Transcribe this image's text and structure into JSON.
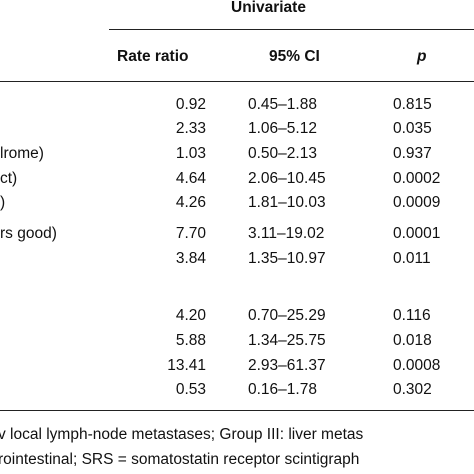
{
  "header": {
    "group_title": "Univariate",
    "rate_ratio": "Rate ratio",
    "ci": "95% CI",
    "p": "p"
  },
  "rows": [
    {
      "label": "",
      "rr": "0.92",
      "ci": "0.45–1.88",
      "p": "0.815"
    },
    {
      "label": "",
      "rr": "2.33",
      "ci": "1.06–5.12",
      "p": "0.035"
    },
    {
      "label": "lrome)",
      "rr": "1.03",
      "ci": "0.50–2.13",
      "p": "0.937"
    },
    {
      "label": "ct)",
      "rr": "4.64",
      "ci": "2.06–10.45",
      "p": "0.0002"
    },
    {
      "label": ")",
      "rr": "4.26",
      "ci": "1.81–10.03",
      "p": "0.0009"
    },
    {
      "label": "rs good)",
      "rr": "7.70",
      "ci": "3.11–19.02",
      "p": "0.0001"
    },
    {
      "label": "",
      "rr": "3.84",
      "ci": "1.35–10.97",
      "p": "0.011"
    },
    {
      "label": "",
      "rr": "4.20",
      "ci": "0.70–25.29",
      "p": "0.116"
    },
    {
      "label": "",
      "rr": "5.88",
      "ci": "1.34–25.75",
      "p": "0.018"
    },
    {
      "label": "",
      "rr": "13.41",
      "ci": "2.93–61.37",
      "p": "0.0008"
    },
    {
      "label": "",
      "rr": "0.53",
      "ci": "0.16–1.78",
      "p": "0.302"
    }
  ],
  "footnotes": [
    "v local lymph-node metastases; Group III: liver metas",
    "rointestinal; SRS = somatostatin receptor scintigraph"
  ]
}
